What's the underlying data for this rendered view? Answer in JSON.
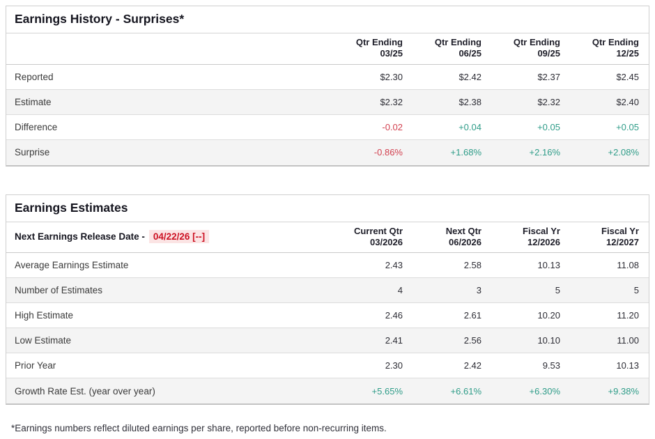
{
  "colors": {
    "positive": "#2e9c88",
    "negative": "#d2404f",
    "release_date_text": "#cc1122",
    "release_date_bg": "#fbe4e4"
  },
  "history": {
    "title": "Earnings History - Surprises*",
    "columns": [
      {
        "line1": "Qtr Ending",
        "line2": "03/25"
      },
      {
        "line1": "Qtr Ending",
        "line2": "06/25"
      },
      {
        "line1": "Qtr Ending",
        "line2": "09/25"
      },
      {
        "line1": "Qtr Ending",
        "line2": "12/25"
      }
    ],
    "rows": [
      {
        "label": "Reported",
        "values": [
          "$2.30",
          "$2.42",
          "$2.37",
          "$2.45"
        ]
      },
      {
        "label": "Estimate",
        "values": [
          "$2.32",
          "$2.38",
          "$2.32",
          "$2.40"
        ]
      },
      {
        "label": "Difference",
        "values": [
          "-0.02",
          "+0.04",
          "+0.05",
          "+0.05"
        ]
      },
      {
        "label": "Surprise",
        "values": [
          "-0.86%",
          "+1.68%",
          "+2.16%",
          "+2.08%"
        ]
      }
    ]
  },
  "estimates": {
    "title": "Earnings Estimates",
    "release_date_label": "Next Earnings Release Date -",
    "release_date_value": "04/22/26 [--]",
    "columns": [
      {
        "line1": "Current Qtr",
        "line2": "03/2026"
      },
      {
        "line1": "Next Qtr",
        "line2": "06/2026"
      },
      {
        "line1": "Fiscal Yr",
        "line2": "12/2026"
      },
      {
        "line1": "Fiscal Yr",
        "line2": "12/2027"
      }
    ],
    "rows": [
      {
        "label": "Average Earnings Estimate",
        "values": [
          "2.43",
          "2.58",
          "10.13",
          "11.08"
        ]
      },
      {
        "label": "Number of Estimates",
        "values": [
          "4",
          "3",
          "5",
          "5"
        ]
      },
      {
        "label": "High Estimate",
        "values": [
          "2.46",
          "2.61",
          "10.20",
          "11.20"
        ]
      },
      {
        "label": "Low Estimate",
        "values": [
          "2.41",
          "2.56",
          "10.10",
          "11.00"
        ]
      },
      {
        "label": "Prior Year",
        "values": [
          "2.30",
          "2.42",
          "9.53",
          "10.13"
        ]
      },
      {
        "label": "Growth Rate Est. (year over year)",
        "values": [
          "+5.65%",
          "+6.61%",
          "+6.30%",
          "+9.38%"
        ]
      }
    ]
  },
  "footnote": "*Earnings numbers reflect diluted earnings per share, reported before non-recurring items."
}
